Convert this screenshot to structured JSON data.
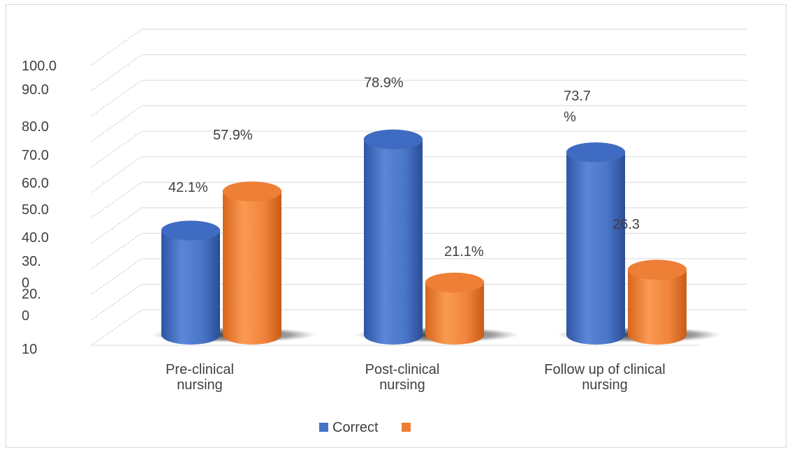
{
  "chart_data": {
    "type": "bar",
    "categories": [
      "Pre-clinical nursing",
      "Post-clinical nursing",
      "Follow up of clinical nursing"
    ],
    "category_lines": [
      [
        "Pre-clinical",
        "nursing"
      ],
      [
        "Post-clinical",
        "nursing"
      ],
      [
        "Follow up of clinical",
        "nursing"
      ]
    ],
    "series": [
      {
        "name": "Correct",
        "values": [
          42.1,
          78.9,
          73.7
        ],
        "labels": [
          [
            "42.1%"
          ],
          [
            "78.9%"
          ],
          [
            "73.7",
            "%"
          ]
        ]
      },
      {
        "name": "",
        "values": [
          57.9,
          21.1,
          26.3
        ],
        "labels": [
          [
            "57.9%"
          ],
          [
            "21.1%"
          ],
          [
            "26.3"
          ]
        ]
      }
    ],
    "y_ticks": [
      [
        "10"
      ],
      [
        "20.",
        "0"
      ],
      [
        "30.",
        "0"
      ],
      [
        "40.0"
      ],
      [
        "50.0"
      ],
      [
        "60.0"
      ],
      [
        "70.0"
      ],
      [
        "80.0"
      ],
      [
        "90.0"
      ],
      [
        "100.0"
      ]
    ],
    "ylim": [
      0,
      100
    ],
    "legend": "bottom",
    "grid": true,
    "colors": {
      "correct": "#4472c4",
      "other": "#ed7d31"
    }
  }
}
